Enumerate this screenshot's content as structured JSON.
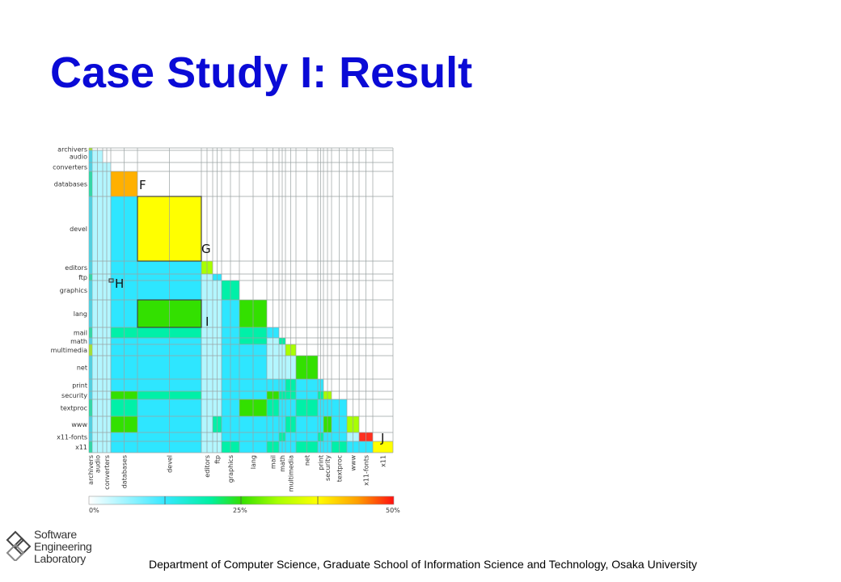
{
  "slide": {
    "title": "Case Study I: Result",
    "footer": "Department of Computer Science, Graduate School of Information Science and Technology, Osaka University"
  },
  "logo": {
    "icon": "lab-logo-icon",
    "lines": [
      "Software",
      "Engineering",
      "Laboratory"
    ],
    "accent": "#333333"
  },
  "chart_data": {
    "type": "heatmap",
    "categories": [
      "archivers",
      "audio",
      "converters",
      "databases",
      "devel",
      "editors",
      "ftp",
      "graphics",
      "lang",
      "mail",
      "math",
      "multimedia",
      "net",
      "print",
      "security",
      "textproc",
      "www",
      "x11-fonts",
      "x11"
    ],
    "annotations": [
      "F",
      "G",
      "H",
      "I",
      "J"
    ],
    "colorbar": {
      "ticks": [
        "0%",
        "25%",
        "50%"
      ],
      "range": [
        0,
        50
      ],
      "colors": [
        "#ffffff",
        "#36e8ff",
        "#00f0a0",
        "#33e000",
        "#a8ff00",
        "#ffff00",
        "#ffa000",
        "#ff1010"
      ]
    }
  }
}
